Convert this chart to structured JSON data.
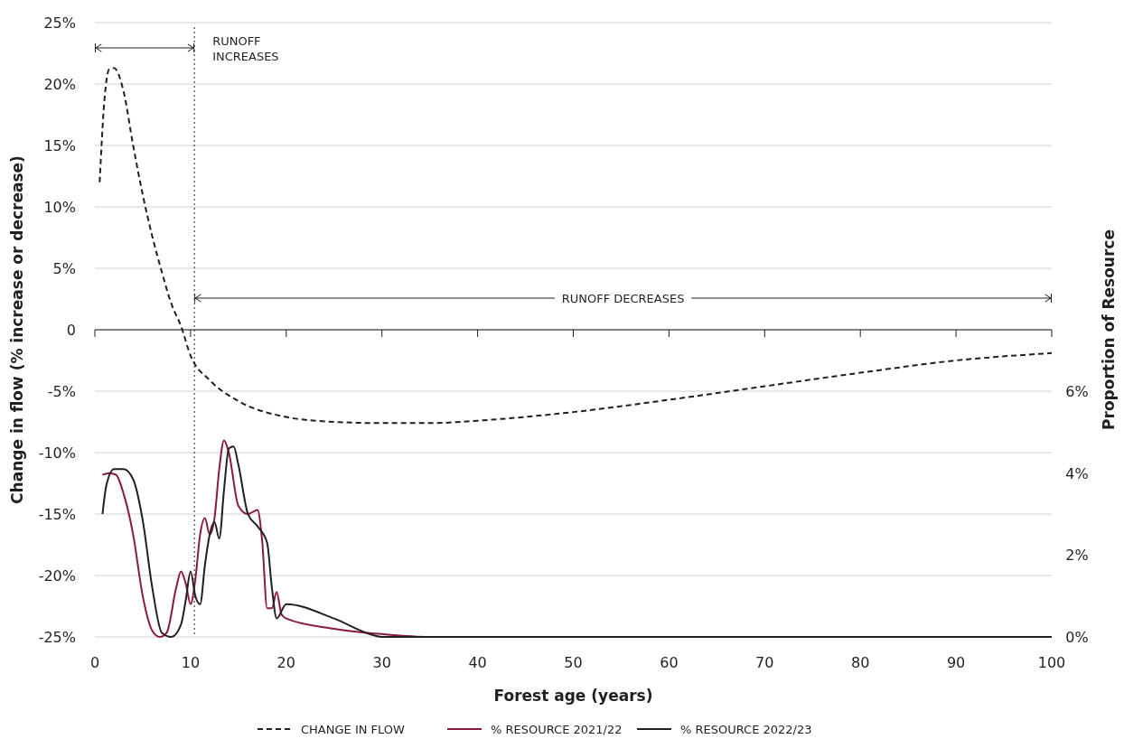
{
  "chart_data": {
    "type": "line",
    "xlabel": "Forest age (years)",
    "ylabel": "Change in flow (% increase or decrease)",
    "y2label": "Proportion of Resource",
    "xlim": [
      0,
      100
    ],
    "xticks": [
      0,
      10,
      20,
      30,
      40,
      50,
      60,
      70,
      80,
      90,
      100
    ],
    "ylim": [
      -25,
      25
    ],
    "yticks": [
      {
        "value": -25,
        "label": "-25%"
      },
      {
        "value": -20,
        "label": "-20%"
      },
      {
        "value": -15,
        "label": "-15%"
      },
      {
        "value": -10,
        "label": "-10%"
      },
      {
        "value": -5,
        "label": "-5%"
      },
      0,
      {
        "value": 5,
        "label": "5%"
      },
      {
        "value": 10,
        "label": "10%"
      },
      {
        "value": 15,
        "label": "15%"
      },
      {
        "value": 20,
        "label": "20%"
      },
      {
        "value": 25,
        "label": "25%"
      }
    ],
    "y2lim": [
      0,
      15
    ],
    "y2ticks": [
      {
        "value": 0,
        "label": "0%"
      },
      {
        "value": 2,
        "label": "2%"
      },
      {
        "value": 4,
        "label": "4%"
      },
      {
        "value": 6,
        "label": "6%"
      }
    ],
    "grid": "y",
    "legend": "bottom",
    "marker": "none",
    "series": [
      {
        "name": "CHANGE IN FLOW",
        "color": "#231f20",
        "line_style": "dashed",
        "x": [
          0.5,
          1,
          1.5,
          2,
          3,
          4,
          5,
          6,
          7,
          8,
          9,
          10,
          12,
          15,
          20,
          25,
          30,
          35,
          40,
          50,
          60,
          70,
          80,
          90,
          100
        ],
        "values": [
          12.0,
          18.7,
          21.2,
          21.3,
          19.4,
          15.0,
          11.0,
          7.6,
          4.7,
          2.1,
          0.3,
          -2.1,
          -4.1,
          -5.8,
          -7.1,
          -7.5,
          -7.6,
          -7.6,
          -7.4,
          -6.7,
          -5.7,
          -4.6,
          -3.5,
          -2.5,
          -1.9
        ]
      },
      {
        "name": "% RESOURCE 2021/22",
        "color": "#8b1a3a",
        "axis": "y2",
        "line_style": "solid",
        "x": [
          0.8,
          1.5,
          2.2,
          3,
          4,
          5,
          6,
          6.8,
          7.5,
          8.5,
          9,
          9.5,
          10,
          10.5,
          11,
          11.5,
          12,
          12.5,
          13,
          13.5,
          14,
          15,
          16,
          17,
          17.5,
          18,
          18.5,
          19,
          19.5,
          20,
          25,
          30,
          35,
          100
        ],
        "values": [
          3.96,
          4.0,
          3.96,
          3.5,
          2.5,
          1.0,
          0.15,
          0,
          0.1,
          1.2,
          1.6,
          1.3,
          0.8,
          1.4,
          2.5,
          2.9,
          2.5,
          2.9,
          4.1,
          4.8,
          4.5,
          3.2,
          3.0,
          3.1,
          2.3,
          0.7,
          0.7,
          1.1,
          0.55,
          0.45,
          0.2,
          0.07,
          0,
          0
        ]
      },
      {
        "name": "% RESOURCE 2022/23",
        "color": "#231f20",
        "axis": "y2",
        "line_style": "solid",
        "x": [
          0.8,
          1.2,
          2,
          3,
          4,
          5,
          6,
          7,
          8,
          9,
          9.5,
          10,
          10.5,
          11,
          11.5,
          12,
          12.5,
          13,
          13.5,
          14,
          14.5,
          15,
          16,
          17,
          18,
          18.5,
          19,
          20,
          25,
          29,
          30,
          100
        ],
        "values": [
          3.0,
          3.7,
          4.1,
          4.1,
          3.85,
          2.85,
          1.2,
          0.1,
          0,
          0.3,
          0.9,
          1.6,
          1.0,
          0.8,
          1.75,
          2.5,
          2.8,
          2.4,
          3.6,
          4.6,
          4.65,
          4.2,
          3.0,
          2.7,
          2.3,
          1.2,
          0.45,
          0.8,
          0.45,
          0.05,
          0,
          0
        ]
      }
    ],
    "ref_lines": [
      {
        "axis": "x",
        "value": 10.4,
        "line_style": "dotted",
        "color": "#231f20"
      }
    ],
    "annotations": [
      "RUNOFF INCREASES",
      "RUNOFF DECREASES"
    ]
  }
}
